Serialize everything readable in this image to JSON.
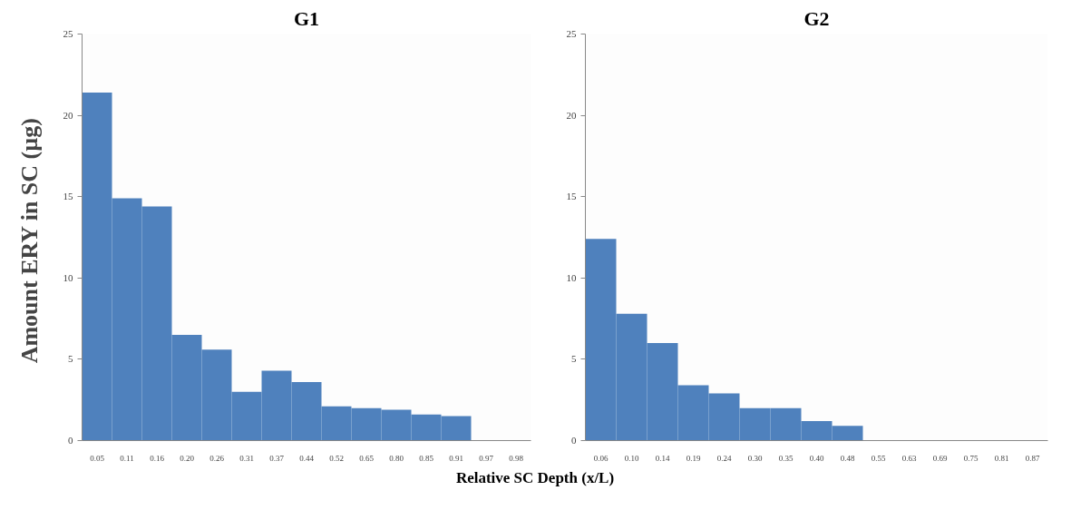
{
  "chart_data": [
    {
      "type": "bar",
      "title": "G1",
      "ylabel": "Amount  ERY in SC (µg)",
      "xlabel": "Relative SC Depth (x/L)",
      "categories": [
        "0.05",
        "0.11",
        "0.16",
        "0.20",
        "0.26",
        "0.31",
        "0.37",
        "0.44",
        "0.52",
        "0.65",
        "0.80",
        "0.85",
        "0.91",
        "0.97",
        "0.98"
      ],
      "values": [
        21.4,
        14.9,
        14.4,
        6.5,
        5.6,
        3.0,
        4.3,
        3.6,
        2.1,
        2.0,
        1.9,
        1.6,
        1.5,
        0,
        0
      ],
      "color": "#4f81bd",
      "ylim": [
        0,
        25
      ],
      "yticks": [
        0,
        5,
        10,
        15,
        20,
        25
      ],
      "grid": false
    },
    {
      "type": "bar",
      "title": "G2",
      "categories": [
        "0.06",
        "0.10",
        "0.14",
        "0.19",
        "0.24",
        "0.30",
        "0.35",
        "0.40",
        "0.48",
        "0.55",
        "0.63",
        "0.69",
        "0.75",
        "0.81",
        "0.87"
      ],
      "values": [
        12.4,
        7.8,
        6.0,
        3.4,
        2.9,
        2.0,
        2.0,
        1.2,
        0.9,
        0,
        0,
        0,
        0,
        0,
        0
      ],
      "color": "#4f81bd",
      "ylim": [
        0,
        25
      ],
      "yticks": [
        0,
        5,
        10,
        15,
        20,
        25
      ],
      "grid": false
    }
  ]
}
